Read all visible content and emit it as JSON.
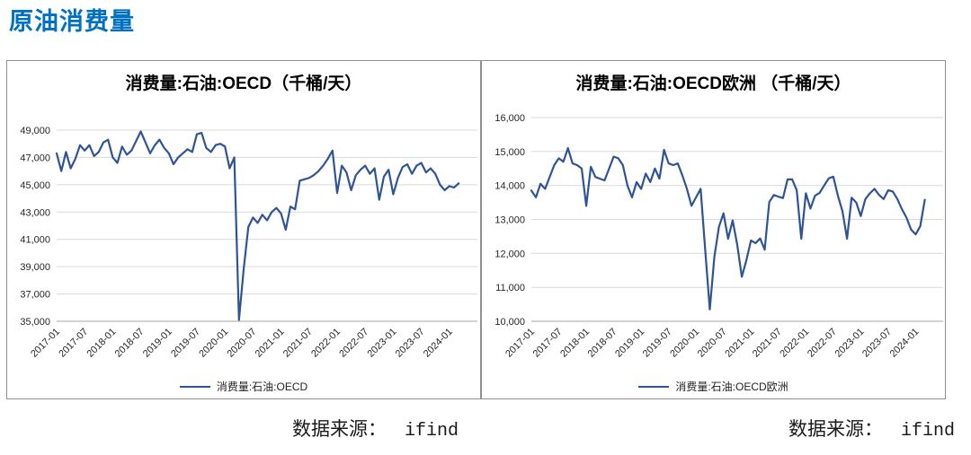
{
  "page": {
    "title": "原油消费量"
  },
  "colors": {
    "accent": "#0070C0",
    "line": "#2F5496",
    "grid": "#D9D9D9",
    "axis": "#A6A6A6",
    "border": "#909090",
    "tick_text": "#262626"
  },
  "source": {
    "label": "数据来源：",
    "value": "ifind"
  },
  "chart_data": [
    {
      "type": "line",
      "title": "消费量:石油:OECD（千桶/天）",
      "legend": "消费量:石油:OECD",
      "legend_position": "bottom",
      "grid": true,
      "ylim": [
        35000,
        49000
      ],
      "ytick_step": 2000,
      "ytick_labels": [
        "35,000",
        "37,000",
        "39,000",
        "41,000",
        "43,000",
        "45,000",
        "47,000",
        "49,000"
      ],
      "x_monthly_start": "2017-01",
      "xlim_months": 90,
      "xtick_every_months": 6,
      "xtick_labels": [
        "2017-01",
        "2017-07",
        "2018-01",
        "2018-07",
        "2019-01",
        "2019-07",
        "2020-01",
        "2020-07",
        "2021-01",
        "2021-07",
        "2022-01",
        "2022-07",
        "2023-01",
        "2023-07",
        "2024-01"
      ],
      "values": [
        47300,
        46000,
        47400,
        46200,
        46900,
        47900,
        47500,
        47900,
        47100,
        47400,
        48100,
        48300,
        47000,
        46600,
        47800,
        47200,
        47500,
        48200,
        48900,
        48100,
        47300,
        47900,
        48300,
        47700,
        47300,
        46500,
        47000,
        47300,
        47600,
        47400,
        48700,
        48800,
        47700,
        47400,
        47900,
        48000,
        47800,
        46200,
        47000,
        35100,
        38800,
        41900,
        42600,
        42200,
        42800,
        42400,
        43000,
        43300,
        42900,
        41700,
        43400,
        43200,
        45300,
        45400,
        45500,
        45700,
        46000,
        46400,
        46900,
        47500,
        44400,
        46400,
        45900,
        44600,
        45700,
        46100,
        46400,
        45800,
        46200,
        43900,
        45600,
        46100,
        44300,
        45500,
        46300,
        46500,
        45800,
        46400,
        46600,
        45900,
        46200,
        45800,
        45000,
        44600,
        44900,
        44800,
        45100
      ]
    },
    {
      "type": "line",
      "title": "消费量:石油:OECD欧洲 （千桶/天）",
      "legend": "消费量:石油:OECD欧洲",
      "legend_position": "bottom",
      "grid": true,
      "ylim": [
        10000,
        16000
      ],
      "ytick_step": 1000,
      "ytick_labels": [
        "10,000",
        "11,000",
        "12,000",
        "13,000",
        "14,000",
        "15,000",
        "16,000"
      ],
      "x_monthly_start": "2017-01",
      "xlim_months": 90,
      "xtick_every_months": 6,
      "xtick_labels": [
        "2017-01",
        "2017-07",
        "2018-01",
        "2018-07",
        "2019-01",
        "2019-07",
        "2020-01",
        "2020-07",
        "2021-01",
        "2021-07",
        "2022-01",
        "2022-07",
        "2023-01",
        "2023-07",
        "2024-01"
      ],
      "values": [
        13850,
        13650,
        14050,
        13900,
        14250,
        14600,
        14800,
        14700,
        15100,
        14650,
        14600,
        14500,
        13400,
        14550,
        14250,
        14200,
        14150,
        14500,
        14850,
        14800,
        14600,
        14000,
        13650,
        14100,
        13900,
        14350,
        14100,
        14500,
        14200,
        15050,
        14650,
        14600,
        14650,
        14300,
        13900,
        13400,
        13650,
        13900,
        12100,
        10350,
        11900,
        12780,
        13180,
        12430,
        12970,
        12250,
        11310,
        11800,
        12380,
        12300,
        12440,
        12110,
        13510,
        13720,
        13670,
        13630,
        14180,
        14180,
        13860,
        12430,
        13770,
        13320,
        13700,
        13780,
        14000,
        14210,
        14260,
        13700,
        13240,
        12430,
        13640,
        13500,
        13100,
        13600,
        13770,
        13900,
        13720,
        13600,
        13860,
        13820,
        13600,
        13300,
        13050,
        12700,
        12560,
        12800,
        13580
      ]
    }
  ]
}
